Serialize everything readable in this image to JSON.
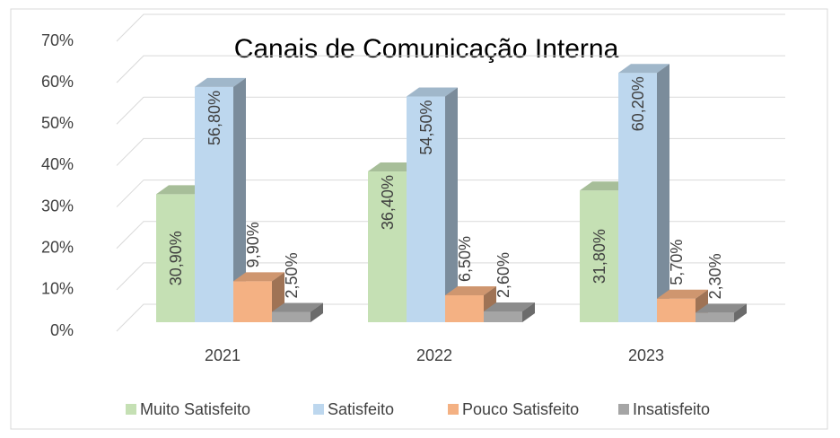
{
  "chart_data": {
    "type": "bar3d",
    "title": "Canais de Comunicação Interna",
    "categories": [
      "2021",
      "2022",
      "2023"
    ],
    "series": [
      {
        "name": "Muito Satisfeito",
        "color": "#c5e0b4",
        "values": [
          30.9,
          36.4,
          31.8
        ],
        "value_labels": [
          "30,90%",
          "36,40%",
          "31,80%"
        ]
      },
      {
        "name": "Satisfeito",
        "color": "#bdd7ee",
        "values": [
          56.8,
          54.5,
          60.2
        ],
        "value_labels": [
          "56,80%",
          "54,50%",
          "60,20%"
        ]
      },
      {
        "name": "Pouco Satisfeito",
        "color": "#f4b183",
        "values": [
          9.9,
          6.5,
          5.7
        ],
        "value_labels": [
          "9,90%",
          "6,50%",
          "5,70%"
        ]
      },
      {
        "name": "Insatisfeito",
        "color": "#a5a5a5",
        "values": [
          2.5,
          2.6,
          2.3
        ],
        "value_labels": [
          "2,50%",
          "2,60%",
          "2,30%"
        ]
      }
    ],
    "ylim": [
      0,
      70
    ],
    "yticks": [
      {
        "value": 0,
        "label": "0%"
      },
      {
        "value": 10,
        "label": "10%"
      },
      {
        "value": 20,
        "label": "20%"
      },
      {
        "value": 30,
        "label": "30%"
      },
      {
        "value": 40,
        "label": "40%"
      },
      {
        "value": 50,
        "label": "50%"
      },
      {
        "value": 60,
        "label": "60%"
      },
      {
        "value": 70,
        "label": "70%"
      }
    ],
    "grid": true,
    "legend": "bottom"
  }
}
